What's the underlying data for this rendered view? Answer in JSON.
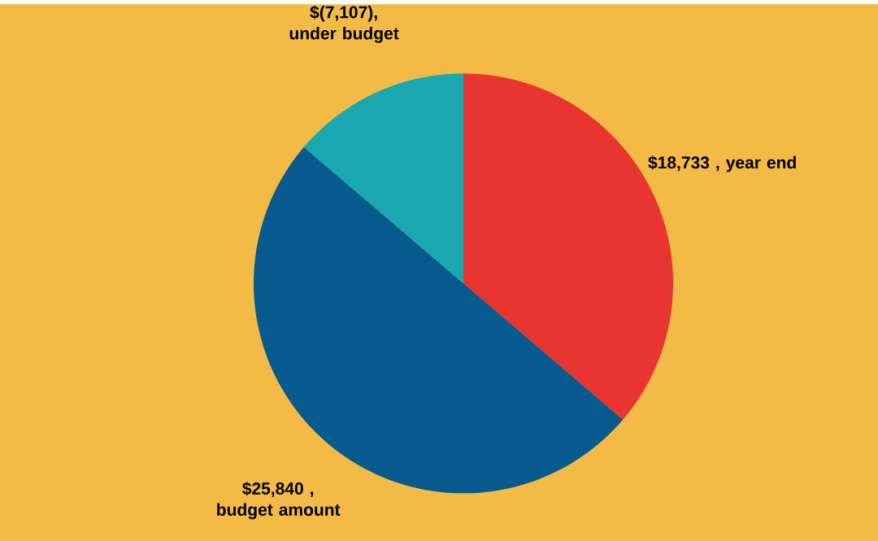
{
  "chart_data": {
    "type": "pie",
    "categories": [
      "year end",
      "budget amount",
      "under budget"
    ],
    "values": [
      18733,
      25840,
      7107
    ],
    "value_labels": [
      "$18,733 ,",
      "$25,840 ,",
      "$(7,107),"
    ],
    "colors": [
      "#e8352f",
      "#065a8e",
      "#19a8b0"
    ]
  }
}
